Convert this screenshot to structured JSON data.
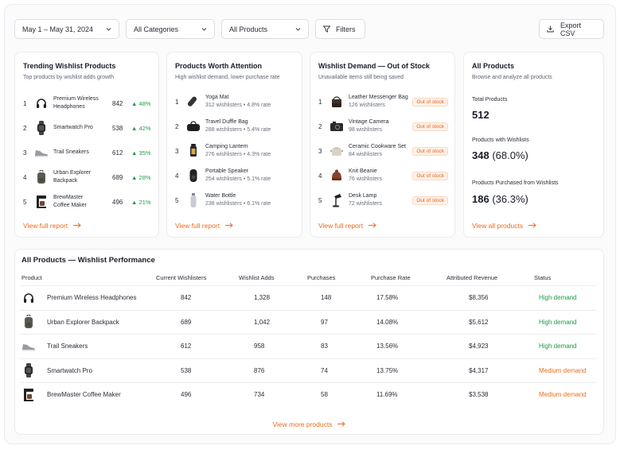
{
  "toolbar": {
    "date_range": "May 1 – May 31, 2024",
    "category": "All Categories",
    "products": "All Products",
    "filters": "Filters",
    "export": "Export CSV"
  },
  "trending": {
    "title": "Trending Wishlist Products",
    "subtitle": "Top products by wishlist adds growth",
    "items": [
      {
        "rank": "1",
        "name1": "Premium Wireless",
        "name2": "Headphones",
        "value": "842",
        "change": "48%",
        "icon": "headphones-icon"
      },
      {
        "rank": "2",
        "name1": "Smartwatch Pro",
        "name2": "",
        "value": "538",
        "change": "42%",
        "icon": "smartwatch-icon"
      },
      {
        "rank": "3",
        "name1": "Trail Sneakers",
        "name2": "",
        "value": "612",
        "change": "35%",
        "icon": "sneaker-icon"
      },
      {
        "rank": "4",
        "name1": "Urban Explorer",
        "name2": "Backpack",
        "value": "689",
        "change": "28%",
        "icon": "backpack-icon"
      },
      {
        "rank": "5",
        "name1": "BrewMaster",
        "name2": "Coffee Maker",
        "value": "496",
        "change": "21%",
        "icon": "coffee-maker-icon"
      }
    ],
    "link": "View full report"
  },
  "attention": {
    "title": "Products Worth Attention",
    "subtitle": "High wishlist demand, lower purchase rate",
    "items": [
      {
        "rank": "1",
        "name": "Yoga Mat",
        "meta": "312 wishlisters • 4.8% rate",
        "icon": "yoga-mat-icon"
      },
      {
        "rank": "2",
        "name": "Travel Duffle Bag",
        "meta": "288 wishlisters • 5.4% rate",
        "icon": "duffle-bag-icon"
      },
      {
        "rank": "3",
        "name": "Camping Lantern",
        "meta": "276 wishlisters • 4.3% rate",
        "icon": "lantern-icon"
      },
      {
        "rank": "4",
        "name": "Portable Speaker",
        "meta": "254 wishlisters • 5.1% rate",
        "icon": "speaker-icon"
      },
      {
        "rank": "5",
        "name": "Water Bottle",
        "meta": "238 wishlisters • 6.1% rate",
        "icon": "water-bottle-icon"
      }
    ],
    "link": "View full report"
  },
  "oos": {
    "title": "Wishlist Demand — Out of Stock",
    "subtitle": "Unavailable items still being saved",
    "badge": "Out of stock",
    "items": [
      {
        "rank": "1",
        "name": "Leather Messenger Bag",
        "meta": "126 wishlisters",
        "icon": "messenger-bag-icon"
      },
      {
        "rank": "2",
        "name": "Vintage Camera",
        "meta": "98 wishlisters",
        "icon": "camera-icon"
      },
      {
        "rank": "3",
        "name": "Ceramic Cookware Set",
        "meta": "84 wishlisters",
        "icon": "cookware-icon"
      },
      {
        "rank": "4",
        "name": "Knit Beanie",
        "meta": "76 wishlisters",
        "icon": "beanie-icon"
      },
      {
        "rank": "5",
        "name": "Desk Lamp",
        "meta": "72 wishlisters",
        "icon": "desk-lamp-icon"
      }
    ],
    "link": "View full report"
  },
  "all": {
    "title": "All Products",
    "subtitle": "Browse and analyze all products",
    "total_label": "Total Products",
    "total_value": "512",
    "wish_label": "Products with Wishlists",
    "wish_value": "348",
    "wish_pct": "(68.0%)",
    "purch_label": "Products Purchased from Wishlists",
    "purch_value": "186",
    "purch_pct": "(36.3%)",
    "link": "View all products"
  },
  "table": {
    "title": "All Products — Wishlist Performance",
    "headers": [
      "Product",
      "Current Wishlisters",
      "Wishlist Adds",
      "Purchases",
      "Purchase Rate",
      "Attributed Revenue",
      "Status"
    ],
    "rows": [
      {
        "product": "Premium Wireless Headphones",
        "wishlisters": "842",
        "adds": "1,328",
        "purchases": "148",
        "rate": "17.58%",
        "revenue": "$8,356",
        "status": "High demand",
        "level": "high",
        "icon": "headphones-icon"
      },
      {
        "product": "Urban Explorer Backpack",
        "wishlisters": "689",
        "adds": "1,042",
        "purchases": "97",
        "rate": "14.08%",
        "revenue": "$5,612",
        "status": "High demand",
        "level": "high",
        "icon": "backpack-icon"
      },
      {
        "product": "Trail Sneakers",
        "wishlisters": "612",
        "adds": "958",
        "purchases": "83",
        "rate": "13.56%",
        "revenue": "$4,923",
        "status": "High demand",
        "level": "high",
        "icon": "sneaker-icon"
      },
      {
        "product": "Smartwatch Pro",
        "wishlisters": "538",
        "adds": "876",
        "purchases": "74",
        "rate": "13.75%",
        "revenue": "$4,317",
        "status": "Medium demand",
        "level": "medium",
        "icon": "smartwatch-icon"
      },
      {
        "product": "BrewMaster Coffee Maker",
        "wishlisters": "496",
        "adds": "734",
        "purchases": "58",
        "rate": "11.69%",
        "revenue": "$3,538",
        "status": "Medium demand",
        "level": "medium",
        "icon": "coffee-maker-icon"
      }
    ],
    "more": "View more products"
  },
  "colors": {
    "accent": "#f06a1a",
    "positive": "#1f9d4c",
    "high": "#1a9a45",
    "medium": "#e8701b"
  }
}
